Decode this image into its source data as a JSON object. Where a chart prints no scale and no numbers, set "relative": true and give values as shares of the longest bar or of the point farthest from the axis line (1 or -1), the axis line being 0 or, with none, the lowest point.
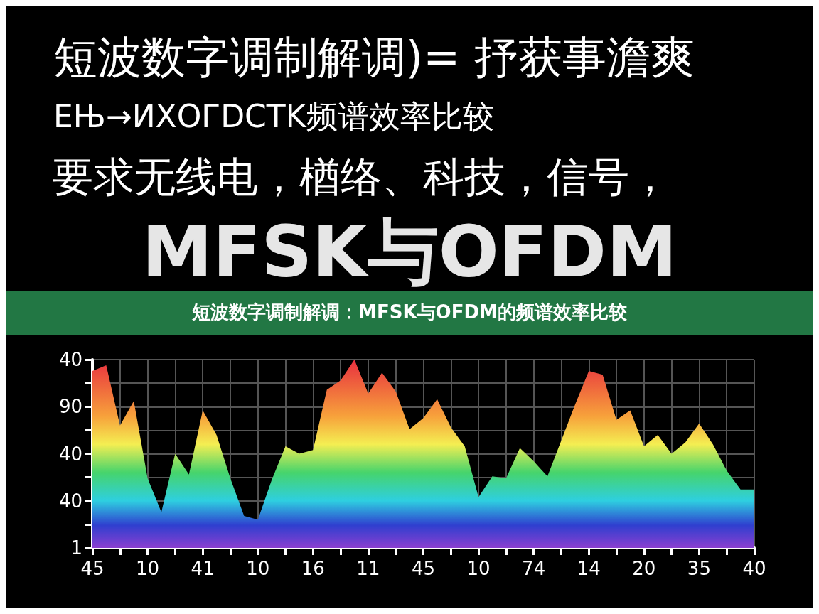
{
  "chart_data": {
    "type": "area",
    "title": "短波数字调制解调)= 抒获事澹爽",
    "subtitle": "ЕЊ→ИХОГDCTK频谱效率比较",
    "annotations": [
      "要求无线电，楢络、科技，信号，",
      "MFSK与OFDM",
      "短波数字调制解调：MFSK与OFDM的频谱效率比较",
      "1",
      "40",
      "40",
      "90",
      "40"
    ],
    "relative": true,
    "categories": [
      "45",
      null,
      null,
      null,
      "10",
      null,
      null,
      null,
      "41",
      null,
      null,
      null,
      "10",
      null,
      null,
      null,
      "16",
      null,
      null,
      null,
      "11",
      null,
      null,
      null,
      "45",
      null,
      null,
      null,
      "10",
      null,
      null,
      null,
      "74",
      null,
      null,
      null,
      "14",
      null,
      null,
      null,
      "20",
      null,
      null,
      null,
      "35",
      null,
      null,
      null,
      "40"
    ],
    "series": [
      {
        "values": [
          0.94,
          0.97,
          0.65,
          0.78,
          0.37,
          0.19,
          0.5,
          0.39,
          0.73,
          0.6,
          0.37,
          0.17,
          0.15,
          0.36,
          0.54,
          0.5,
          0.52,
          0.84,
          0.89,
          1,
          0.82,
          0.93,
          0.83,
          0.63,
          0.69,
          0.79,
          0.64,
          0.54,
          0.27,
          0.38,
          0.37,
          0.53,
          0.46,
          0.38,
          0.57,
          0.76,
          0.94,
          0.92,
          0.68,
          0.73,
          0.54,
          0.6,
          0.5,
          0.56,
          0.66,
          0.55,
          0.41,
          0.31,
          0.31
        ]
      }
    ],
    "grid": true
  }
}
